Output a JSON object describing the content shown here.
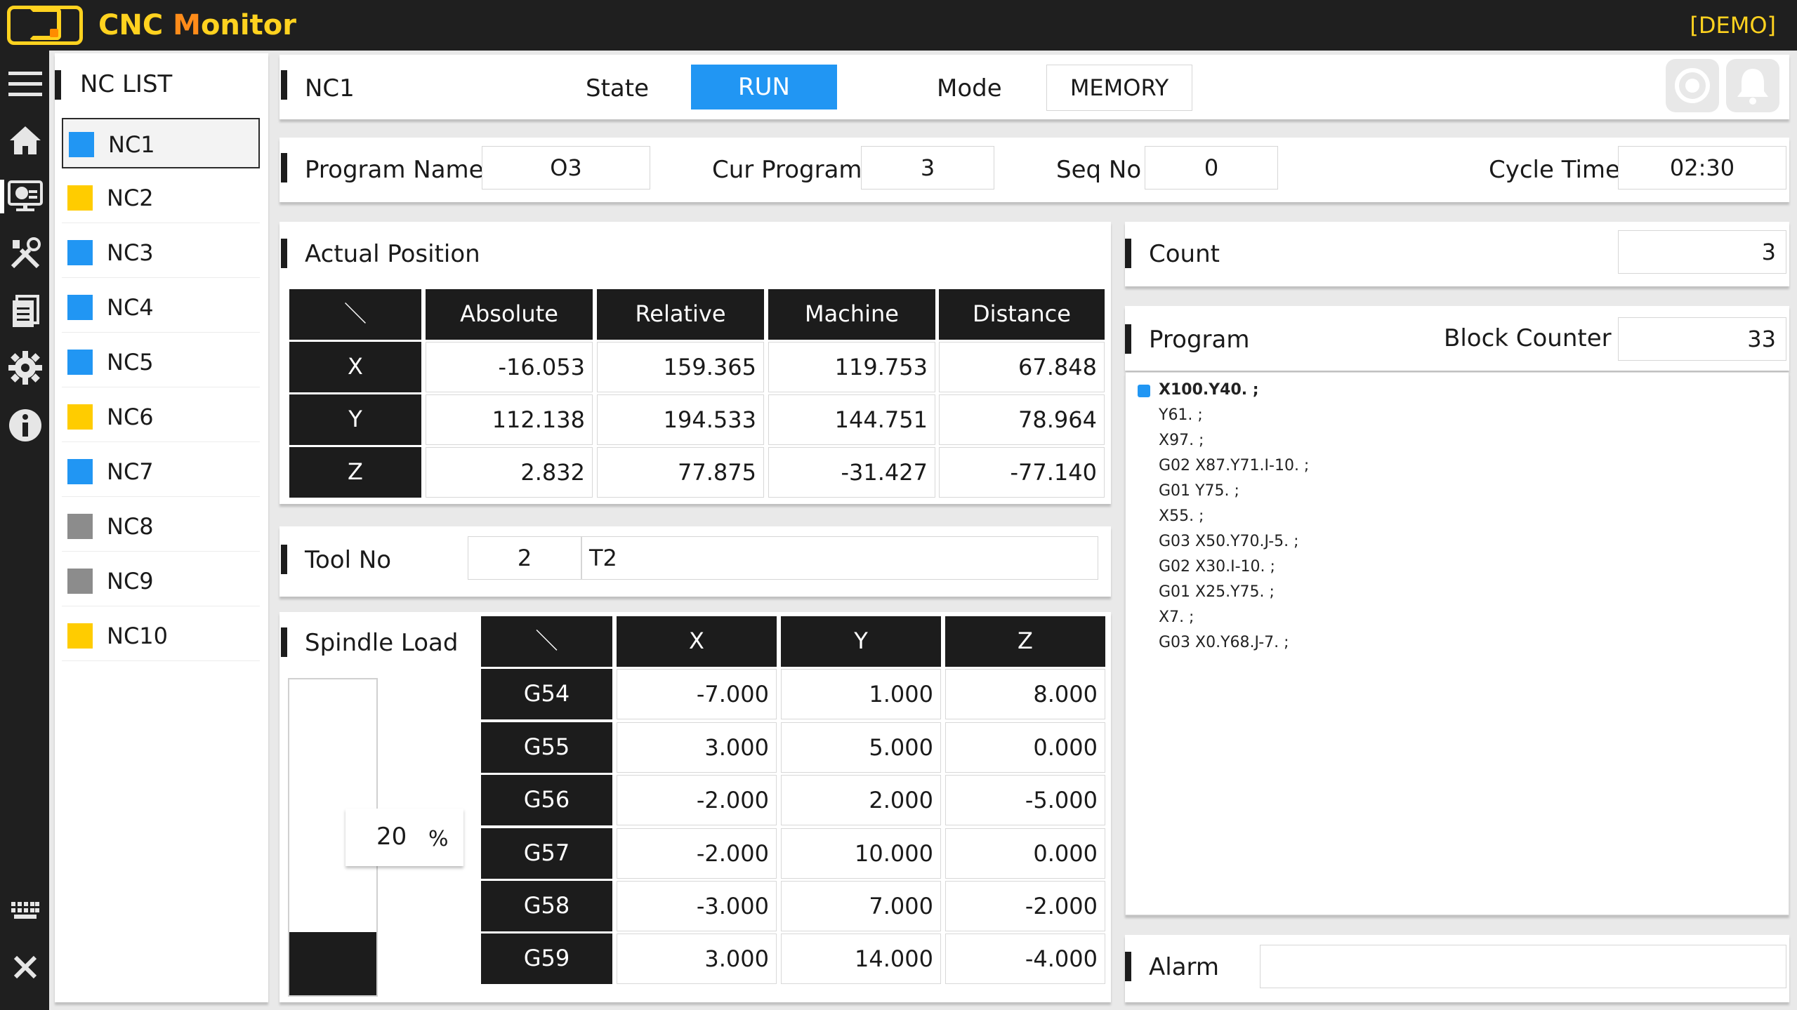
{
  "app": {
    "title_prefix": "CNC ",
    "title_highlight": "M",
    "title_suffix": "onitor",
    "demo_label": "[DEMO]",
    "accent": "#ffd21f",
    "accent2": "#ff8c1a"
  },
  "sidebar_icons": [
    "menu-icon",
    "home-icon",
    "monitor-icon",
    "tools-icon",
    "document-icon",
    "gear-icon",
    "info-icon",
    "keyboard-icon",
    "close-icon"
  ],
  "nc_list": {
    "title": "NC LIST",
    "items": [
      {
        "name": "NC1",
        "color": "#2196f3"
      },
      {
        "name": "NC2",
        "color": "#ffcc00"
      },
      {
        "name": "NC3",
        "color": "#2196f3"
      },
      {
        "name": "NC4",
        "color": "#2196f3"
      },
      {
        "name": "NC5",
        "color": "#2196f3"
      },
      {
        "name": "NC6",
        "color": "#ffcc00"
      },
      {
        "name": "NC7",
        "color": "#2196f3"
      },
      {
        "name": "NC8",
        "color": "#8c8c8c"
      },
      {
        "name": "NC9",
        "color": "#8c8c8c"
      },
      {
        "name": "NC10",
        "color": "#ffcc00"
      }
    ]
  },
  "header": {
    "nc_name": "NC1",
    "state_label": "State",
    "state_value": "RUN",
    "mode_label": "Mode",
    "mode_value": "MEMORY"
  },
  "program_bar": {
    "program_name_label": "Program Name",
    "program_name_value": "O3",
    "cur_program_label": "Cur Program",
    "cur_program_value": "3",
    "seq_no_label": "Seq No",
    "seq_no_value": "0",
    "cycle_time_label": "Cycle Time",
    "cycle_time_value": "02:30"
  },
  "actual_position": {
    "title": "Actual Position",
    "corner": "＼",
    "columns": [
      "Absolute",
      "Relative",
      "Machine",
      "Distance"
    ],
    "rows": [
      {
        "axis": "X",
        "values": [
          "-16.053",
          "159.365",
          "119.753",
          "67.848"
        ]
      },
      {
        "axis": "Y",
        "values": [
          "112.138",
          "194.533",
          "144.751",
          "78.964"
        ]
      },
      {
        "axis": "Z",
        "values": [
          "2.832",
          "77.875",
          "-31.427",
          "-77.140"
        ]
      }
    ]
  },
  "tool": {
    "label": "Tool No",
    "number": "2",
    "name": "T2"
  },
  "spindle": {
    "label": "Spindle Load",
    "value": "20",
    "unit": "%",
    "fraction": 0.2
  },
  "offsets": {
    "corner": "＼",
    "columns": [
      "X",
      "Y",
      "Z"
    ],
    "rows": [
      {
        "code": "G54",
        "values": [
          "-7.000",
          "1.000",
          "8.000"
        ]
      },
      {
        "code": "G55",
        "values": [
          "3.000",
          "5.000",
          "0.000"
        ]
      },
      {
        "code": "G56",
        "values": [
          "-2.000",
          "2.000",
          "-5.000"
        ]
      },
      {
        "code": "G57",
        "values": [
          "-2.000",
          "10.000",
          "0.000"
        ]
      },
      {
        "code": "G58",
        "values": [
          "-3.000",
          "7.000",
          "-2.000"
        ]
      },
      {
        "code": "G59",
        "values": [
          "3.000",
          "14.000",
          "-4.000"
        ]
      }
    ]
  },
  "count": {
    "label": "Count",
    "value": "3"
  },
  "program": {
    "label": "Program",
    "block_counter_label": "Block Counter",
    "block_counter_value": "33",
    "lines": [
      "X100.Y40. ;",
      "Y61. ;",
      "X97. ;",
      "G02 X87.Y71.I-10. ;",
      "G01 Y75. ;",
      "X55. ;",
      "G03 X50.Y70.J-5. ;",
      "G02 X30.I-10. ;",
      "G01 X25.Y75. ;",
      "X7. ;",
      "G03 X0.Y68.J-7. ;"
    ]
  },
  "alarm": {
    "label": "Alarm",
    "value": ""
  }
}
